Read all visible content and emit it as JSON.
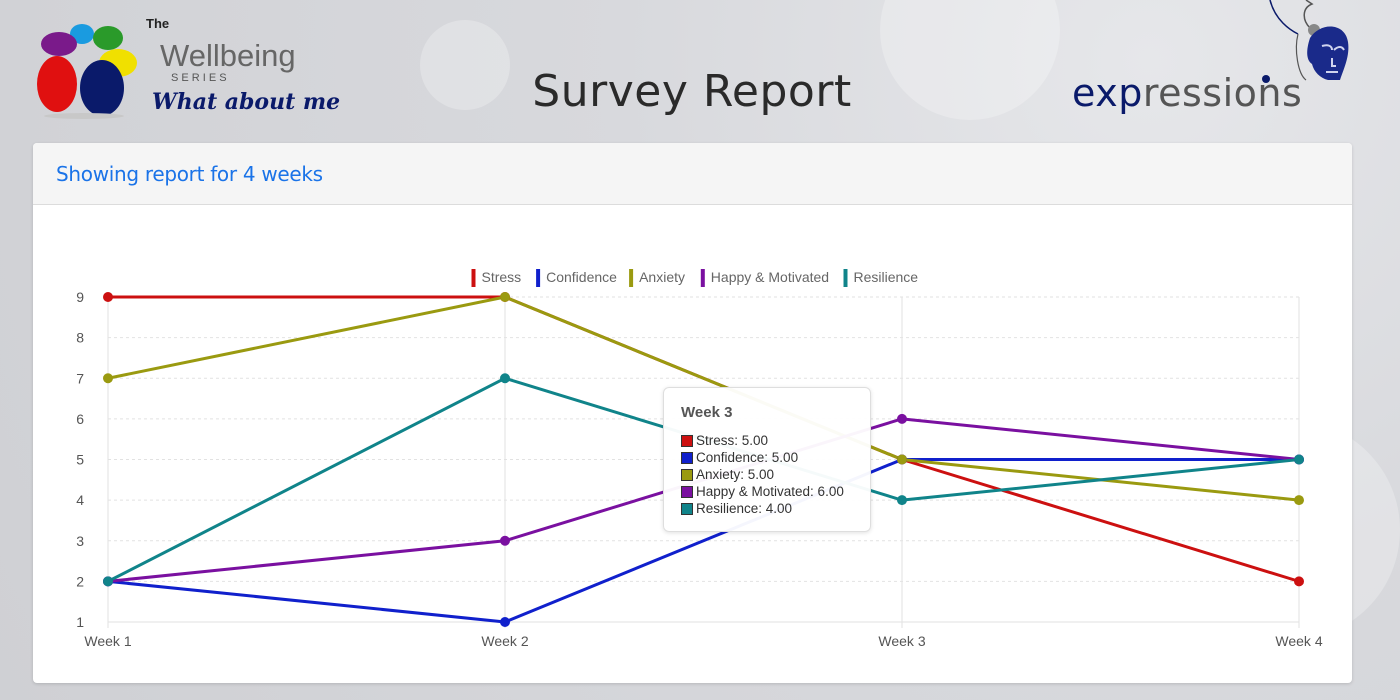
{
  "header": {
    "logo_left": {
      "the": "The",
      "title": "Wellbeing",
      "series": "S E R I E S",
      "tagline": "What about me ?"
    },
    "page_title": "Survey Report",
    "logo_right": {
      "wordmark_exp": "exp",
      "wordmark_rest": "ressions"
    }
  },
  "panel": {
    "title": "Showing report for 4 weeks"
  },
  "colors": {
    "Stress": "#cc1010",
    "Confidence": "#1020cc",
    "Anxiety": "#9a9a10",
    "Happy & Motivated": "#7a10a0",
    "Resilience": "#10848a"
  },
  "chart_data": {
    "type": "line",
    "categories": [
      "Week 1",
      "Week 2",
      "Week 3",
      "Week 4"
    ],
    "yticks": [
      1,
      2,
      3,
      4,
      5,
      6,
      7,
      8,
      9
    ],
    "ylim": [
      1,
      9
    ],
    "legend_position": "top-center",
    "grid": true,
    "series": [
      {
        "name": "Stress",
        "values": [
          9,
          9,
          5,
          2
        ]
      },
      {
        "name": "Confidence",
        "values": [
          2,
          1,
          5,
          5
        ]
      },
      {
        "name": "Anxiety",
        "values": [
          7,
          9,
          5,
          4
        ]
      },
      {
        "name": "Happy & Motivated",
        "values": [
          2,
          3,
          6,
          5
        ]
      },
      {
        "name": "Resilience",
        "values": [
          2,
          7,
          4,
          5
        ]
      }
    ]
  },
  "tooltip": {
    "title": "Week 3",
    "rows": [
      {
        "text": "Stress: 5.00",
        "series": "Stress"
      },
      {
        "text": "Confidence: 5.00",
        "series": "Confidence"
      },
      {
        "text": "Anxiety: 5.00",
        "series": "Anxiety"
      },
      {
        "text": "Happy & Motivated: 6.00",
        "series": "Happy & Motivated"
      },
      {
        "text": "Resilience: 4.00",
        "series": "Resilience"
      }
    ]
  }
}
